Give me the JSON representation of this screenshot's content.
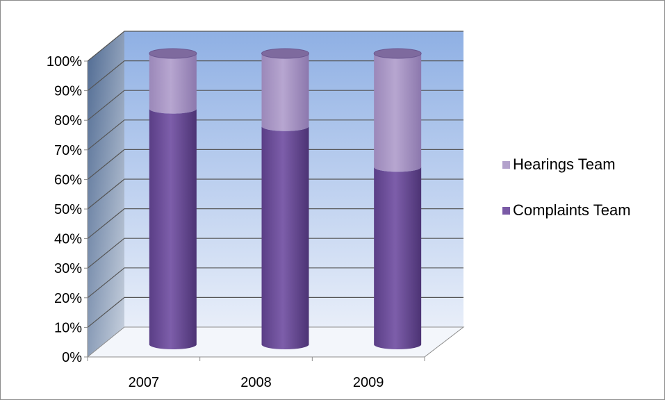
{
  "chart_data": {
    "type": "bar",
    "stacked": true,
    "percent_stacked": true,
    "style": "3d-cylinder",
    "categories": [
      "2007",
      "2008",
      "2009"
    ],
    "series": [
      {
        "name": "Complaints Team",
        "values": [
          81,
          75,
          61
        ],
        "color": "#7a5aa6"
      },
      {
        "name": "Hearings Team",
        "values": [
          19,
          25,
          39
        ],
        "color": "#b3a2cc"
      }
    ],
    "y_ticks": [
      "0%",
      "10%",
      "20%",
      "30%",
      "40%",
      "50%",
      "60%",
      "70%",
      "80%",
      "90%",
      "100%"
    ],
    "ylim": [
      0,
      100
    ],
    "grid": true,
    "legend_position": "right",
    "colors": {
      "back_wall_top": "#8fb0e4",
      "back_wall_bottom": "#e8eef9",
      "side_wall": "#5f7aa3",
      "gridline": "#555555"
    }
  }
}
